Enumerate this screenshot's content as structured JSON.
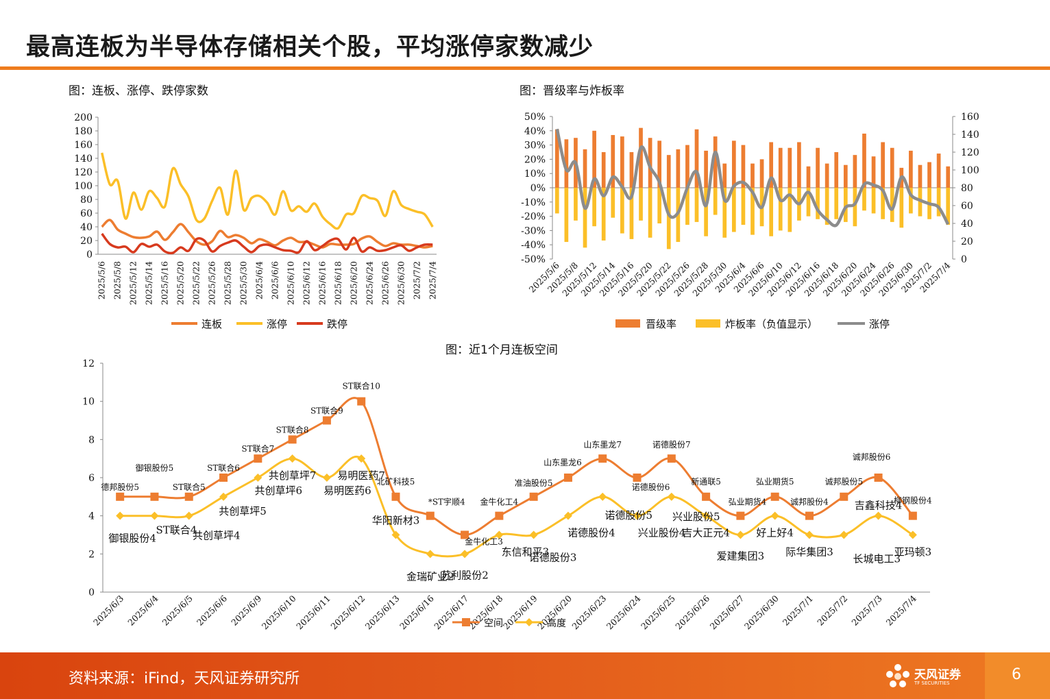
{
  "page": {
    "title": "最高连板为半导体存储相关个股，平均涨停家数减少",
    "source": "资料来源：iFind，天风证券研究所",
    "logo_text": "天风证券",
    "logo_sub": "TF SECURITIES",
    "page_number": "6"
  },
  "colors": {
    "accent": "#ee7c1e",
    "orange": "#ed7d31",
    "yellow": "#fbbf28",
    "red": "#d73a1e",
    "gray": "#8c8c8c"
  },
  "chart_data": [
    {
      "type": "line",
      "title": "图：连板、涨停、跌停家数",
      "x": [
        "2025/5/6",
        "2025/5/7",
        "2025/5/8",
        "2025/5/9",
        "2025/5/12",
        "2025/5/13",
        "2025/5/14",
        "2025/5/15",
        "2025/5/16",
        "2025/5/19",
        "2025/5/20",
        "2025/5/21",
        "2025/5/22",
        "2025/5/23",
        "2025/5/26",
        "2025/5/27",
        "2025/5/28",
        "2025/5/29",
        "2025/5/30",
        "2025/6/3",
        "2025/6/4",
        "2025/6/5",
        "2025/6/6",
        "2025/6/9",
        "2025/6/10",
        "2025/6/11",
        "2025/6/12",
        "2025/6/13",
        "2025/6/16",
        "2025/6/17",
        "2025/6/18",
        "2025/6/19",
        "2025/6/20",
        "2025/6/23",
        "2025/6/24",
        "2025/6/25",
        "2025/6/26",
        "2025/6/27",
        "2025/6/30",
        "2025/7/1",
        "2025/7/2",
        "2025/7/3",
        "2025/7/4"
      ],
      "x_tick_labels": [
        "2025/5/6",
        "2025/5/8",
        "2025/5/12",
        "2025/5/14",
        "2025/5/16",
        "2025/5/20",
        "2025/5/22",
        "2025/5/26",
        "2025/5/28",
        "2025/5/30",
        "2025/6/4",
        "2025/6/6",
        "2025/6/10",
        "2025/6/12",
        "2025/6/16",
        "2025/6/18",
        "2025/6/20",
        "2025/6/24",
        "2025/6/26",
        "2025/6/30",
        "2025/7/2",
        "2025/7/4"
      ],
      "series": [
        {
          "name": "连板",
          "color": "#ed7d31",
          "values": [
            40,
            50,
            36,
            30,
            25,
            24,
            26,
            33,
            21,
            32,
            44,
            32,
            19,
            14,
            19,
            34,
            25,
            28,
            24,
            16,
            22,
            18,
            13,
            20,
            24,
            18,
            18,
            14,
            10,
            15,
            14,
            14,
            15,
            23,
            26,
            18,
            12,
            16,
            14,
            14,
            12,
            10,
            12
          ]
        },
        {
          "name": "涨停",
          "color": "#fbbf28",
          "values": [
            148,
            102,
            107,
            52,
            90,
            65,
            92,
            82,
            70,
            125,
            102,
            84,
            50,
            52,
            78,
            97,
            58,
            122,
            65,
            82,
            85,
            75,
            58,
            92,
            64,
            70,
            62,
            74,
            55,
            44,
            38,
            58,
            60,
            85,
            82,
            78,
            56,
            92,
            72,
            66,
            62,
            58,
            40
          ]
        },
        {
          "name": "跌停",
          "color": "#d73a1e",
          "values": [
            30,
            15,
            10,
            11,
            3,
            15,
            11,
            14,
            4,
            2,
            10,
            5,
            22,
            20,
            4,
            12,
            17,
            20,
            11,
            3,
            12,
            14,
            10,
            6,
            5,
            3,
            19,
            6,
            12,
            20,
            22,
            7,
            24,
            4,
            10,
            5,
            6,
            10,
            13,
            5,
            10,
            14,
            14
          ]
        }
      ],
      "ylim": [
        0,
        200
      ],
      "y_ticks": [
        "0",
        "20",
        "40",
        "60",
        "80",
        "100",
        "120",
        "140",
        "160",
        "180",
        "200"
      ],
      "legend": "bottom"
    },
    {
      "type": "bar",
      "title": "图：晋级率与炸板率",
      "x": [
        "2025/5/6",
        "2025/5/7",
        "2025/5/8",
        "2025/5/9",
        "2025/5/12",
        "2025/5/13",
        "2025/5/14",
        "2025/5/15",
        "2025/5/16",
        "2025/5/19",
        "2025/5/20",
        "2025/5/21",
        "2025/5/22",
        "2025/5/23",
        "2025/5/26",
        "2025/5/27",
        "2025/5/28",
        "2025/5/29",
        "2025/5/30",
        "2025/6/3",
        "2025/6/4",
        "2025/6/5",
        "2025/6/6",
        "2025/6/9",
        "2025/6/10",
        "2025/6/11",
        "2025/6/12",
        "2025/6/13",
        "2025/6/16",
        "2025/6/17",
        "2025/6/18",
        "2025/6/19",
        "2025/6/20",
        "2025/6/23",
        "2025/6/24",
        "2025/6/25",
        "2025/6/26",
        "2025/6/27",
        "2025/6/30",
        "2025/7/1",
        "2025/7/2",
        "2025/7/3",
        "2025/7/4"
      ],
      "x_tick_labels": [
        "2025/5/6",
        "2025/5/8",
        "2025/5/12",
        "2025/5/14",
        "2025/5/16",
        "2025/5/20",
        "2025/5/22",
        "2025/5/26",
        "2025/5/28",
        "2025/5/30",
        "2025/6/4",
        "2025/6/6",
        "2025/6/10",
        "2025/6/12",
        "2025/6/16",
        "2025/6/18",
        "2025/6/20",
        "2025/6/24",
        "2025/6/26",
        "2025/6/30",
        "2025/7/2",
        "2025/7/4"
      ],
      "series": [
        {
          "name": "晋级率",
          "type": "bar",
          "axis": "left",
          "color": "#ed7d31",
          "values": [
            41,
            34,
            35,
            27,
            40,
            25,
            37,
            36,
            25,
            42,
            35,
            33,
            23,
            27,
            30,
            41,
            26,
            36,
            17,
            33,
            30,
            17,
            20,
            32,
            28,
            28,
            32,
            15,
            28,
            17,
            25,
            16,
            23,
            38,
            22,
            32,
            28,
            14,
            26,
            16,
            18,
            24,
            15
          ]
        },
        {
          "name": "炸板率（负值显示）",
          "type": "bar",
          "axis": "left",
          "color": "#fbbf28",
          "values": [
            -18,
            -38,
            -23,
            -42,
            -27,
            -37,
            -21,
            -32,
            -36,
            -23,
            -35,
            -25,
            -43,
            -38,
            -26,
            -24,
            -34,
            -19,
            -35,
            -31,
            -26,
            -33,
            -27,
            -34,
            -30,
            -31,
            -23,
            -20,
            -22,
            -26,
            -22,
            -24,
            -27,
            -16,
            -18,
            -22,
            -24,
            -28,
            -18,
            -20,
            -22,
            -20,
            -26
          ]
        },
        {
          "name": "涨停",
          "type": "line",
          "axis": "right",
          "color": "#8c8c8c",
          "values": [
            146,
            100,
            108,
            57,
            90,
            71,
            92,
            81,
            70,
            125,
            103,
            86,
            50,
            52,
            80,
            98,
            60,
            120,
            66,
            82,
            86,
            75,
            58,
            91,
            66,
            72,
            62,
            75,
            55,
            44,
            38,
            58,
            62,
            84,
            83,
            77,
            56,
            92,
            72,
            66,
            62,
            58,
            39
          ]
        }
      ],
      "ylim_left": [
        -50,
        50
      ],
      "ylim_right": [
        0,
        160
      ],
      "y_ticks_left": [
        "-50%",
        "-40%",
        "-30%",
        "-20%",
        "-10%",
        "0%",
        "10%",
        "20%",
        "30%",
        "40%",
        "50%"
      ],
      "y_ticks_right": [
        "0",
        "20",
        "40",
        "60",
        "80",
        "100",
        "120",
        "140",
        "160"
      ],
      "legend": "bottom"
    },
    {
      "type": "line",
      "title": "图：近1个月连板空间",
      "x": [
        "2025/6/3",
        "2025/6/4",
        "2025/6/5",
        "2025/6/6",
        "2025/6/9",
        "2025/6/10",
        "2025/6/11",
        "2025/6/12",
        "2025/6/13",
        "2025/6/16",
        "2025/6/17",
        "2025/6/18",
        "2025/6/19",
        "2025/6/20",
        "2025/6/23",
        "2025/6/24",
        "2025/6/25",
        "2025/6/26",
        "2025/6/27",
        "2025/6/30",
        "2025/7/1",
        "2025/7/2",
        "2025/7/3",
        "2025/7/4"
      ],
      "series": [
        {
          "name": "空间",
          "color": "#ed7d31",
          "values": [
            5,
            5,
            5,
            6,
            7,
            8,
            9,
            10,
            5,
            4,
            3,
            4,
            5,
            6,
            7,
            6,
            7,
            5,
            4,
            5,
            4,
            5,
            6,
            4
          ],
          "labels": [
            "德邦股份5",
            "御银股份5",
            "ST联合5",
            "ST联合6",
            "ST联合7",
            "ST联合8",
            "ST联合9",
            "ST联合10",
            "北矿科技5",
            "*ST宇顺4",
            "金牛化工3",
            "金牛化工4",
            "准油股份5",
            "山东墨龙6",
            "山东墨龙7",
            "诺德股份6",
            "诺德股份7",
            "新通联5",
            "弘业期货4",
            "弘业期货5",
            "诚邦股份4",
            "诚邦股份5",
            "诚邦股份6",
            "柳钢股份4"
          ]
        },
        {
          "name": "高度",
          "color": "#fbbf28",
          "values": [
            4,
            4,
            4,
            5,
            6,
            7,
            6,
            7,
            3,
            2,
            2,
            3,
            3,
            4,
            5,
            4,
            5,
            4,
            3,
            4,
            3,
            3,
            4,
            3
          ],
          "labels": [
            "御银股份4",
            "ST联合4",
            "共创草坪4",
            "共创草坪5",
            "共创草坪6",
            "共创草坪7",
            "易明医药6",
            "易明医药7",
            "华阳新材3",
            "金瑞矿业2",
            "苏利股份2",
            "东信和平3",
            "诺德股份3",
            "诺德股份4",
            "诺德股份5",
            "兴业股份4",
            "兴业股份5",
            "吉大正元4",
            "爱建集团3",
            "好上好4",
            "际华集团3",
            "长城电工3",
            "吉鑫科技4",
            "亚玛顿3"
          ]
        }
      ],
      "ylim": [
        0,
        12
      ],
      "y_ticks": [
        "0",
        "2",
        "4",
        "6",
        "8",
        "10",
        "12"
      ],
      "legend": "bottom"
    }
  ]
}
